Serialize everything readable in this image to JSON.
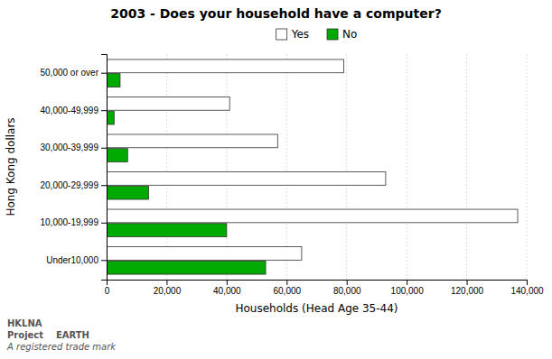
{
  "chart_data": {
    "type": "bar",
    "orientation": "horizontal",
    "title": "2003 - Does your household have a computer?",
    "xlabel": "Households (Head Age 35-44)",
    "ylabel": "Hong Kong dollars",
    "categories": [
      "50,000 or over",
      "40,000-49,999",
      "30,000-39,999",
      "20,000-29,999",
      "10,000-19,999",
      "Under10,000"
    ],
    "series": [
      {
        "name": "Yes",
        "color": "#ffffff",
        "values": [
          79000,
          41000,
          57000,
          93000,
          137000,
          65000
        ]
      },
      {
        "name": "No",
        "color": "#00aa00",
        "values": [
          4500,
          2500,
          7000,
          14000,
          40000,
          53000
        ]
      }
    ],
    "xlim": [
      0,
      140000
    ],
    "xticks": [
      0,
      {
        "value": 20000,
        "label": "20,000"
      },
      {
        "value": 40000,
        "label": "40,000"
      },
      {
        "value": 60000,
        "label": "60,000"
      },
      {
        "value": 80000,
        "label": "80,000"
      },
      {
        "value": 100000,
        "label": "100,000"
      },
      {
        "value": 120000,
        "label": "120,000"
      },
      {
        "value": 140000,
        "label": "140,000"
      }
    ],
    "grid": true,
    "annotations": [
      "HKLNA",
      "Project    EARTH",
      "A registered trade mark"
    ]
  }
}
